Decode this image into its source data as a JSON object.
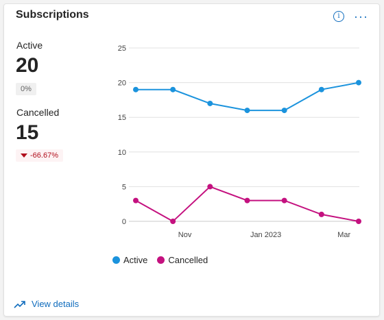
{
  "card": {
    "title": "Subscriptions",
    "info_icon": "info-icon",
    "more_icon": "more-options-icon"
  },
  "kpis": {
    "active": {
      "label": "Active",
      "value": "20",
      "delta": "0%"
    },
    "cancelled": {
      "label": "Cancelled",
      "value": "15",
      "delta": "-66.67%"
    }
  },
  "chart_data": {
    "type": "line",
    "x": [
      "2022-09-25",
      "2022-10-09",
      "2022-10-23",
      "2022-11-06",
      "2022-11-20",
      "2022-12-04",
      "2022-12-18",
      "2023-01-01",
      "2023-01-15",
      "2023-01-29",
      "2023-02-12",
      "2023-02-26",
      "2023-03-12"
    ],
    "x_ticks": [
      "Nov",
      "Jan 2023",
      "Mar"
    ],
    "ylim": [
      0,
      25
    ],
    "y_ticks": [
      0,
      5,
      10,
      15,
      20,
      25
    ],
    "grid": true,
    "legend": "bottom",
    "series": [
      {
        "name": "Active",
        "color": "#1b93dd",
        "points": [
          [
            "2022-09-25",
            19
          ],
          [
            "2022-10-23",
            19
          ],
          [
            "2022-11-20",
            17
          ],
          [
            "2022-12-18",
            16
          ],
          [
            "2023-01-15",
            16
          ],
          [
            "2023-02-12",
            19
          ],
          [
            "2023-03-12",
            20
          ]
        ]
      },
      {
        "name": "Cancelled",
        "color": "#c4117f",
        "points": [
          [
            "2022-09-25",
            3
          ],
          [
            "2022-10-23",
            0
          ],
          [
            "2022-11-20",
            5
          ],
          [
            "2022-12-18",
            3
          ],
          [
            "2023-01-15",
            3
          ],
          [
            "2023-02-12",
            1
          ],
          [
            "2023-03-12",
            0
          ]
        ]
      }
    ]
  },
  "footer": {
    "link_label": "View details",
    "icon": "trend-icon"
  }
}
